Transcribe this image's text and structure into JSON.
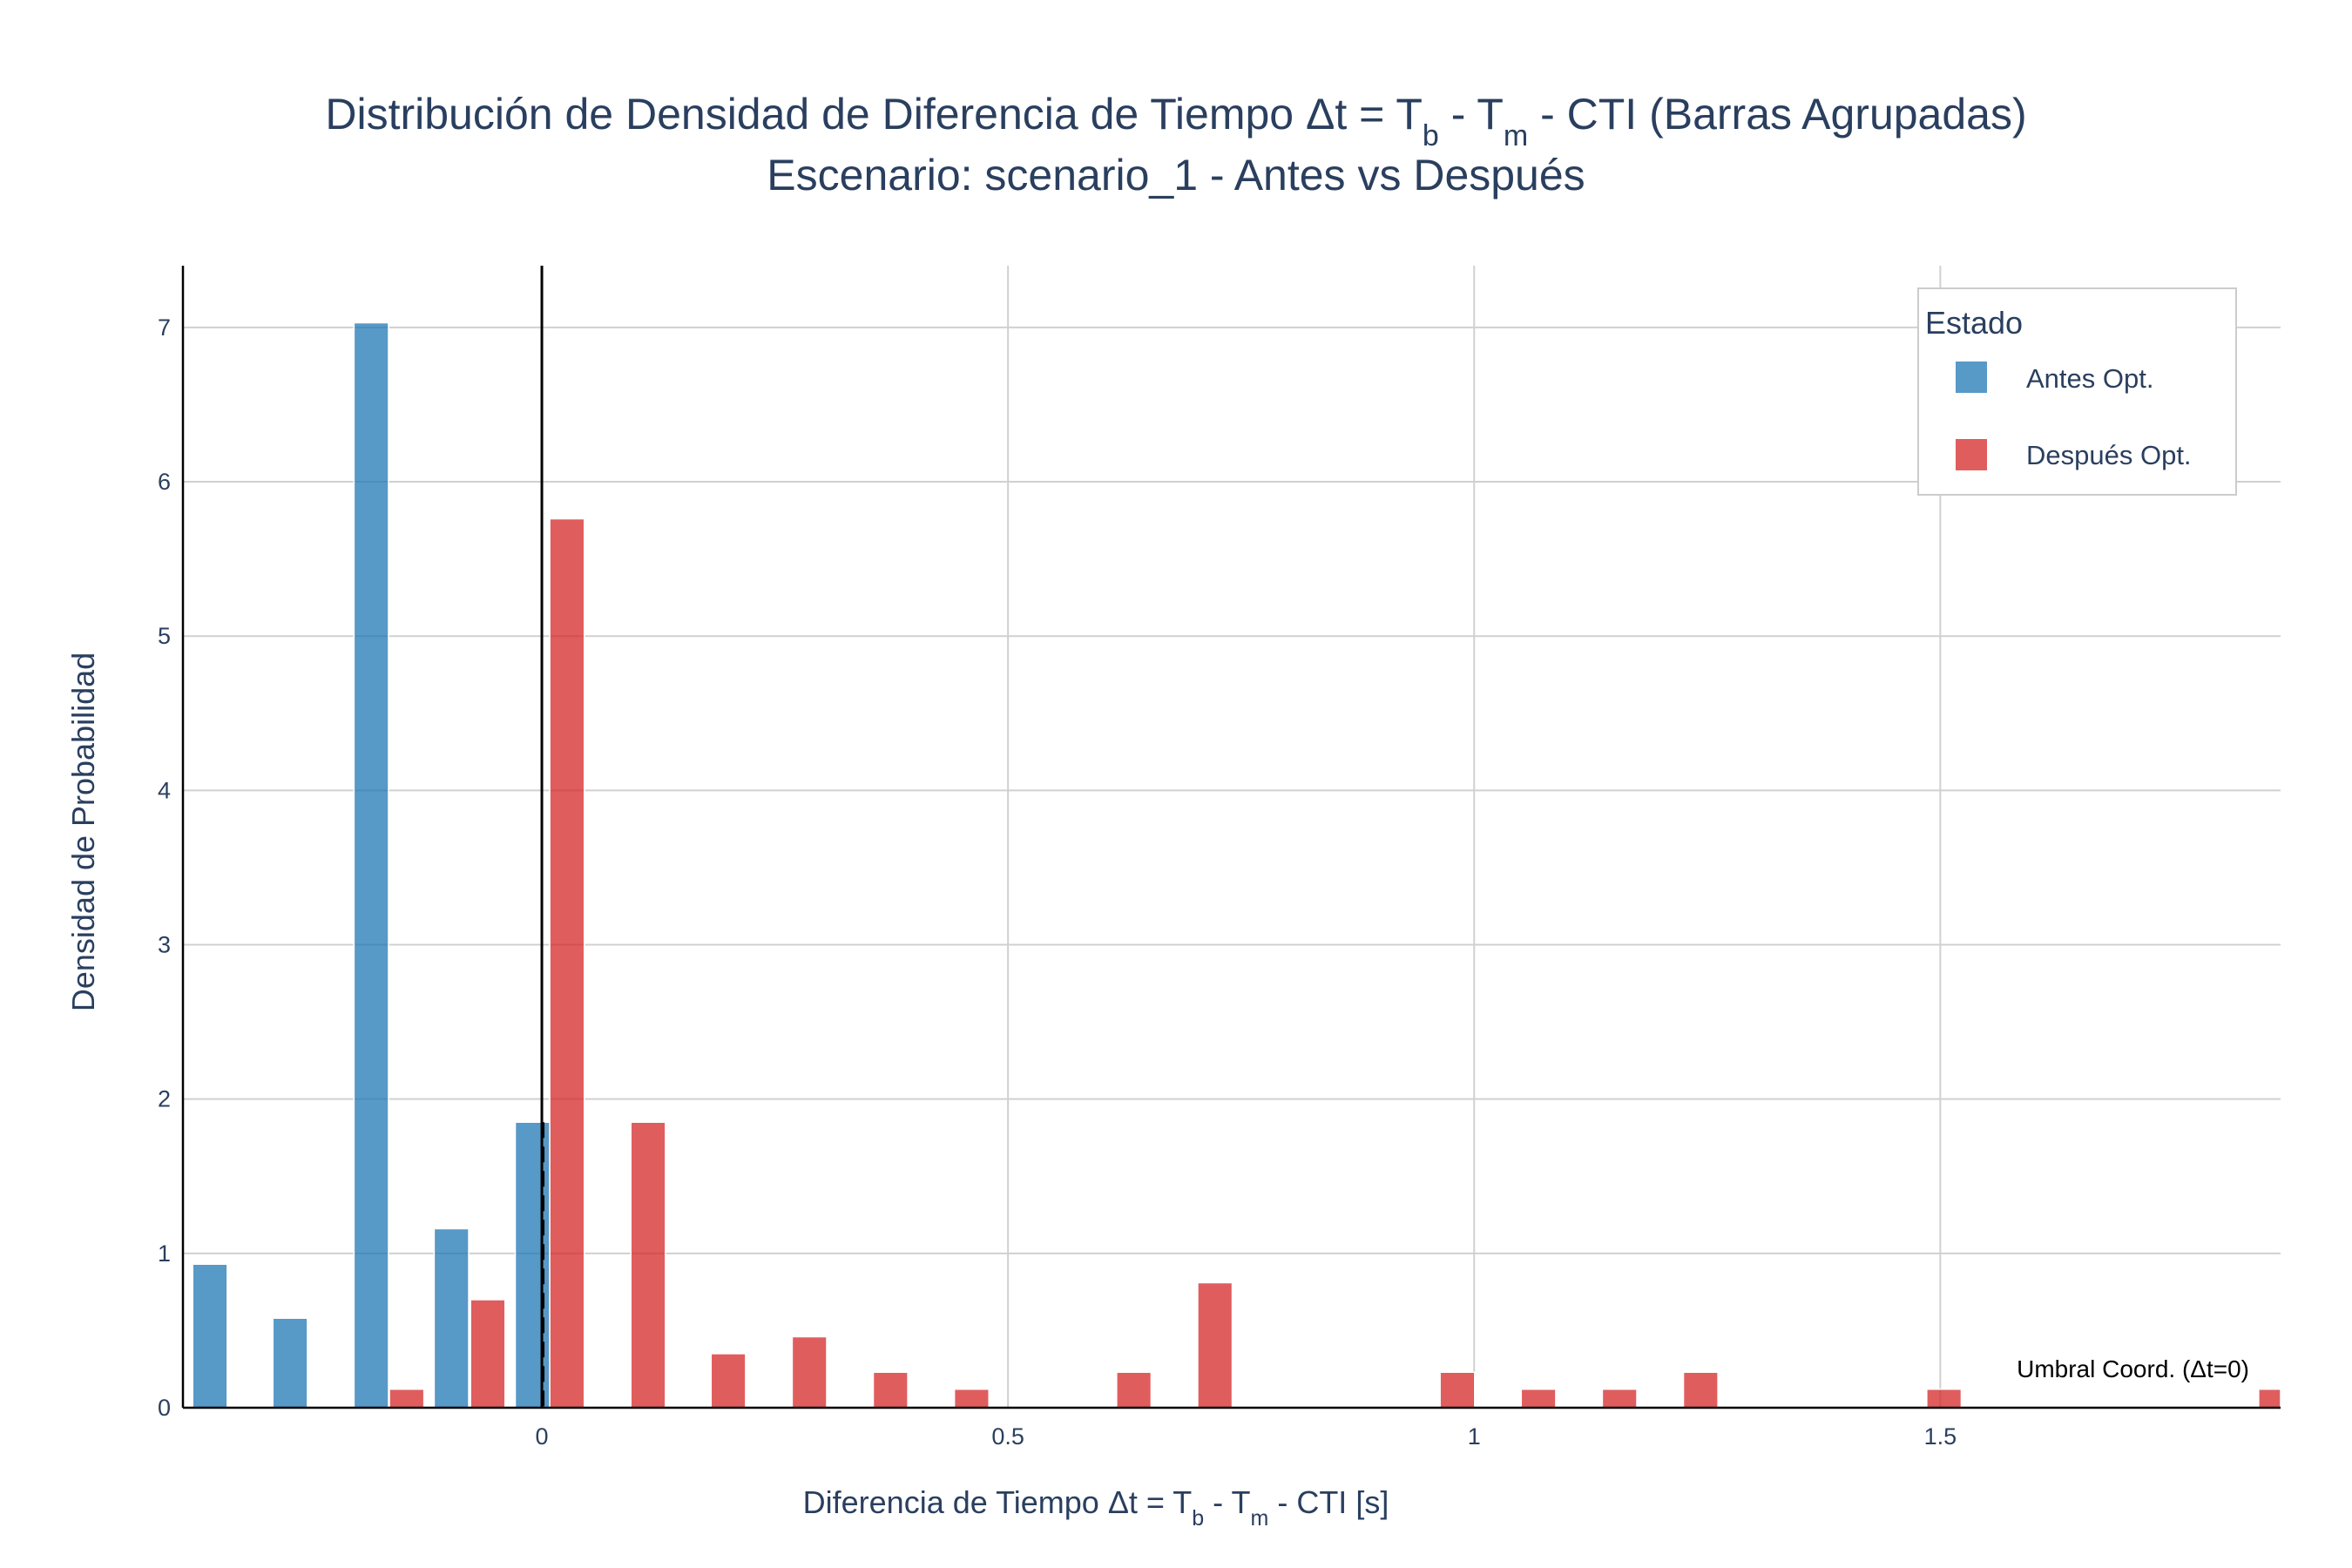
{
  "chart_data": {
    "type": "bar",
    "title_line1_parts": {
      "pre": "Distribución de Densidad de Diferencia de Tiempo Δt = T",
      "sub1": "b",
      "mid": " - T",
      "sub2": "m",
      "post": " - CTI  (Barras Agrupadas)"
    },
    "title_line2": "Escenario: scenario_1 - Antes vs Después",
    "xlabel_parts": {
      "pre": "Diferencia de Tiempo Δt = T",
      "sub1": "b",
      "mid": " - T",
      "sub2": "m",
      "post": " - CTI [s]"
    },
    "ylabel": "Densidad de Probabilidad",
    "xlim": [
      -0.385,
      1.865
    ],
    "ylim": [
      0,
      7.4
    ],
    "x_ticks": [
      {
        "value": 0,
        "label": "0"
      },
      {
        "value": 0.5,
        "label": "0.5"
      },
      {
        "value": 1,
        "label": "1"
      },
      {
        "value": 1.5,
        "label": "1.5"
      }
    ],
    "y_ticks": [
      {
        "value": 0,
        "label": "0"
      },
      {
        "value": 1,
        "label": "1"
      },
      {
        "value": 2,
        "label": "2"
      },
      {
        "value": 3,
        "label": "3"
      },
      {
        "value": 4,
        "label": "4"
      },
      {
        "value": 5,
        "label": "5"
      },
      {
        "value": 6,
        "label": "6"
      },
      {
        "value": 7,
        "label": "7"
      }
    ],
    "grid": true,
    "bin_width": 0.0868,
    "bar_width": 0.037,
    "legend": {
      "title": "Estado",
      "position": "top-right"
    },
    "series": [
      {
        "name": "Antes Opt.",
        "color": "#1f77b4",
        "opacity": 0.75,
        "points": [
          {
            "x": -0.356,
            "y": 0.93
          },
          {
            "x": -0.27,
            "y": 0.58
          },
          {
            "x": -0.183,
            "y": 7.03
          },
          {
            "x": -0.097,
            "y": 1.16
          },
          {
            "x": -0.01,
            "y": 1.85
          }
        ]
      },
      {
        "name": "Después Opt.",
        "color": "#d62728",
        "opacity": 0.75,
        "points": [
          {
            "x": -0.145,
            "y": 0.12
          },
          {
            "x": -0.058,
            "y": 0.7
          },
          {
            "x": 0.027,
            "y": 5.76
          },
          {
            "x": 0.114,
            "y": 1.85
          },
          {
            "x": 0.2,
            "y": 0.35
          },
          {
            "x": 0.287,
            "y": 0.46
          },
          {
            "x": 0.374,
            "y": 0.23
          },
          {
            "x": 0.461,
            "y": 0.12
          },
          {
            "x": 0.635,
            "y": 0.23
          },
          {
            "x": 0.722,
            "y": 0.81
          },
          {
            "x": 0.982,
            "y": 0.23
          },
          {
            "x": 1.069,
            "y": 0.12
          },
          {
            "x": 1.156,
            "y": 0.12
          },
          {
            "x": 1.243,
            "y": 0.23
          },
          {
            "x": 1.504,
            "y": 0.12
          },
          {
            "x": 1.86,
            "y": 0.12
          }
        ]
      }
    ],
    "threshold": {
      "x": 0,
      "label": "Umbral Coord. (Δt=0)"
    }
  }
}
